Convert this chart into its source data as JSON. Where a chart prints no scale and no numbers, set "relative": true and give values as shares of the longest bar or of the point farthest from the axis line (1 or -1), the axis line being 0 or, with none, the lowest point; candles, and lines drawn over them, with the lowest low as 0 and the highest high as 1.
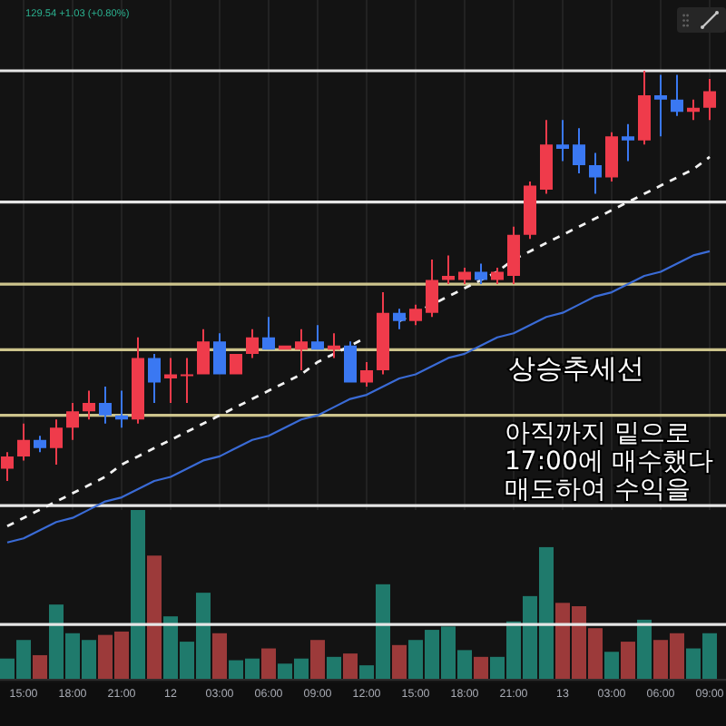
{
  "chart_data": [
    {
      "type": "candlestick",
      "subtitle": "129.54 +1.03 (+0.80%)",
      "categories": [
        null,
        "15:00",
        null,
        null,
        "18:00",
        null,
        null,
        "21:00",
        null,
        null,
        "12",
        null,
        null,
        "03:00",
        null,
        null,
        "06:00",
        null,
        null,
        "09:00",
        null,
        null,
        "12:00",
        null,
        null,
        "15:00",
        null,
        null,
        "18:00",
        null,
        null,
        "21:00",
        null,
        null,
        "13",
        null,
        null,
        "03:00",
        null,
        null,
        "06:00",
        null,
        null,
        "09:00"
      ],
      "relative": true,
      "ohlc": [
        [
          0.03,
          0.07,
          0,
          0.06
        ],
        [
          0.06,
          0.14,
          0.05,
          0.1
        ],
        [
          0.1,
          0.11,
          0.07,
          0.08
        ],
        [
          0.08,
          0.15,
          0.04,
          0.13
        ],
        [
          0.13,
          0.19,
          0.1,
          0.17
        ],
        [
          0.17,
          0.22,
          0.15,
          0.19
        ],
        [
          0.19,
          0.23,
          0.14,
          0.16
        ],
        [
          0.16,
          0.22,
          0.13,
          0.15
        ],
        [
          0.15,
          0.35,
          0.14,
          0.3
        ],
        [
          0.3,
          0.31,
          0.19,
          0.24
        ],
        [
          0.25,
          0.3,
          0.19,
          0.26
        ],
        [
          0.26,
          0.3,
          0.19,
          0.26
        ],
        [
          0.26,
          0.37,
          0.26,
          0.34
        ],
        [
          0.34,
          0.36,
          0.26,
          0.26
        ],
        [
          0.26,
          0.31,
          0.26,
          0.31
        ],
        [
          0.31,
          0.37,
          0.3,
          0.35
        ],
        [
          0.35,
          0.4,
          0.32,
          0.32
        ],
        [
          0.32,
          0.33,
          0.32,
          0.33
        ],
        [
          0.32,
          0.37,
          0.27,
          0.34
        ],
        [
          0.34,
          0.38,
          0.32,
          0.32
        ],
        [
          0.32,
          0.36,
          0.3,
          0.33
        ],
        [
          0.33,
          0.34,
          0.24,
          0.24
        ],
        [
          0.24,
          0.29,
          0.23,
          0.27
        ],
        [
          0.27,
          0.46,
          0.26,
          0.41
        ],
        [
          0.41,
          0.42,
          0.37,
          0.39
        ],
        [
          0.39,
          0.43,
          0.38,
          0.42
        ],
        [
          0.41,
          0.54,
          0.4,
          0.49
        ],
        [
          0.49,
          0.55,
          0.48,
          0.5
        ],
        [
          0.49,
          0.52,
          0.48,
          0.51
        ],
        [
          0.51,
          0.53,
          0.48,
          0.49
        ],
        [
          0.49,
          0.52,
          0.48,
          0.51
        ],
        [
          0.5,
          0.62,
          0.48,
          0.6
        ],
        [
          0.6,
          0.73,
          0.59,
          0.72
        ],
        [
          0.71,
          0.88,
          0.7,
          0.82
        ],
        [
          0.82,
          0.88,
          0.78,
          0.81
        ],
        [
          0.82,
          0.86,
          0.75,
          0.77
        ],
        [
          0.77,
          0.8,
          0.7,
          0.74
        ],
        [
          0.74,
          0.85,
          0.73,
          0.84
        ],
        [
          0.84,
          0.87,
          0.78,
          0.83
        ],
        [
          0.83,
          1,
          0.82,
          0.94
        ],
        [
          0.94,
          0.99,
          0.84,
          0.93
        ],
        [
          0.93,
          0.99,
          0.89,
          0.9
        ],
        [
          0.9,
          0.93,
          0.88,
          0.91
        ],
        [
          0.91,
          0.98,
          0.88,
          0.95
        ]
      ],
      "colors": [
        "#ef3b4b",
        "#ef3b4b",
        "#3a78f2",
        "#ef3b4b",
        "#ef3b4b",
        "#ef3b4b",
        "#3a78f2",
        "#3a78f2",
        "#ef3b4b",
        "#3a78f2",
        "#ef3b4b",
        "#ef3b4b",
        "#ef3b4b",
        "#3a78f2",
        "#ef3b4b",
        "#ef3b4b",
        "#3a78f2",
        "#ef3b4b",
        "#ef3b4b",
        "#3a78f2",
        "#ef3b4b",
        "#3a78f2",
        "#ef3b4b",
        "#ef3b4b",
        "#3a78f2",
        "#ef3b4b",
        "#ef3b4b",
        "#ef3b4b",
        "#ef3b4b",
        "#3a78f2",
        "#ef3b4b",
        "#ef3b4b",
        "#ef3b4b",
        "#ef3b4b",
        "#3a78f2",
        "#3a78f2",
        "#3a78f2",
        "#ef3b4b",
        "#3a78f2",
        "#ef3b4b",
        "#3a78f2",
        "#3a78f2",
        "#ef3b4b",
        "#ef3b4b"
      ],
      "series": [
        {
          "type": "line",
          "color": "#f2f2f2",
          "line_style": "dashed",
          "values": [
            -0.11,
            -0.09,
            -0.07,
            -0.05,
            -0.03,
            -0.01,
            0.01,
            0.04,
            0.06,
            0.08,
            0.1,
            0.12,
            0.14,
            0.16,
            0.18,
            0.2,
            0.22,
            0.24,
            0.26,
            0.29,
            0.31,
            0.33,
            0.35,
            null,
            0.39,
            0.41,
            0.43,
            0.45,
            0.47,
            0.49,
            0.51,
            0.54,
            0.56,
            0.58,
            0.6,
            0.62,
            0.64,
            0.66,
            0.68,
            0.7,
            0.72,
            0.74,
            0.76,
            0.79
          ]
        },
        {
          "type": "line",
          "color": "#3a6bd6",
          "line_style": "solid",
          "values": [
            -0.15,
            -0.14,
            -0.12,
            -0.1,
            -0.09,
            -0.07,
            -0.05,
            -0.04,
            -0.02,
            0,
            0.01,
            0.03,
            0.05,
            0.06,
            0.08,
            0.1,
            0.11,
            0.13,
            0.15,
            0.16,
            0.18,
            0.2,
            0.21,
            0.23,
            0.25,
            0.26,
            0.28,
            0.3,
            0.31,
            0.33,
            0.35,
            0.36,
            0.38,
            0.4,
            0.41,
            0.43,
            0.45,
            0.46,
            0.48,
            0.5,
            0.51,
            0.53,
            0.55,
            0.56
          ]
        }
      ],
      "ref_lines": [
        {
          "axis": "y",
          "value": 1,
          "color": "#e6e6e6"
        },
        {
          "axis": "y",
          "value": 0.68,
          "color": "#e6e6e6"
        },
        {
          "axis": "y",
          "value": 0.48,
          "color": "#cdc48c"
        },
        {
          "axis": "y",
          "value": 0.32,
          "color": "#cdc48c"
        },
        {
          "axis": "y",
          "value": 0.16,
          "color": "#cdc48c"
        },
        {
          "axis": "y",
          "value": -0.06,
          "color": "#e6e6e6"
        },
        {
          "axis": "y",
          "value": -0.35,
          "color": "#e6e6e6"
        }
      ],
      "grid": "x",
      "annotations": [
        "상승추세선",
        "아직까지 밑으로",
        "17:00에 매수했다",
        "매도하여 수익을"
      ]
    },
    {
      "type": "bar",
      "categories": [
        null,
        null,
        null,
        null,
        null,
        null,
        null,
        null,
        null,
        null,
        null,
        null,
        null,
        null,
        null,
        null,
        null,
        null,
        null,
        null,
        null,
        null,
        null,
        null,
        null,
        null,
        null,
        null,
        null,
        null,
        null,
        null,
        null,
        null,
        null,
        null,
        null,
        null,
        null,
        null,
        null,
        null,
        null,
        null
      ],
      "relative": true,
      "values": [
        0.12,
        0.23,
        0.14,
        0.44,
        0.27,
        0.23,
        0.26,
        0.28,
        1,
        0.73,
        0.37,
        0.22,
        0.51,
        0.27,
        0.11,
        0.12,
        0.18,
        0.09,
        0.12,
        0.23,
        0.13,
        0.15,
        0.08,
        0.56,
        0.2,
        0.23,
        0.29,
        0.31,
        0.17,
        0.13,
        0.13,
        0.34,
        0.49,
        0.78,
        0.45,
        0.43,
        0.3,
        0.16,
        0.22,
        0.35,
        0.23,
        0.27,
        0.18,
        0.27
      ],
      "colors": [
        "#1f7a6c",
        "#1f7a6c",
        "#9c3a3a",
        "#1f7a6c",
        "#1f7a6c",
        "#1f7a6c",
        "#9c3a3a",
        "#9c3a3a",
        "#1f7a6c",
        "#9c3a3a",
        "#1f7a6c",
        "#1f7a6c",
        "#1f7a6c",
        "#9c3a3a",
        "#1f7a6c",
        "#1f7a6c",
        "#9c3a3a",
        "#1f7a6c",
        "#1f7a6c",
        "#9c3a3a",
        "#1f7a6c",
        "#9c3a3a",
        "#1f7a6c",
        "#1f7a6c",
        "#9c3a3a",
        "#1f7a6c",
        "#1f7a6c",
        "#1f7a6c",
        "#1f7a6c",
        "#9c3a3a",
        "#1f7a6c",
        "#1f7a6c",
        "#1f7a6c",
        "#1f7a6c",
        "#9c3a3a",
        "#9c3a3a",
        "#9c3a3a",
        "#1f7a6c",
        "#9c3a3a",
        "#1f7a6c",
        "#9c3a3a",
        "#9c3a3a",
        "#1f7a6c",
        "#1f7a6c"
      ]
    }
  ]
}
